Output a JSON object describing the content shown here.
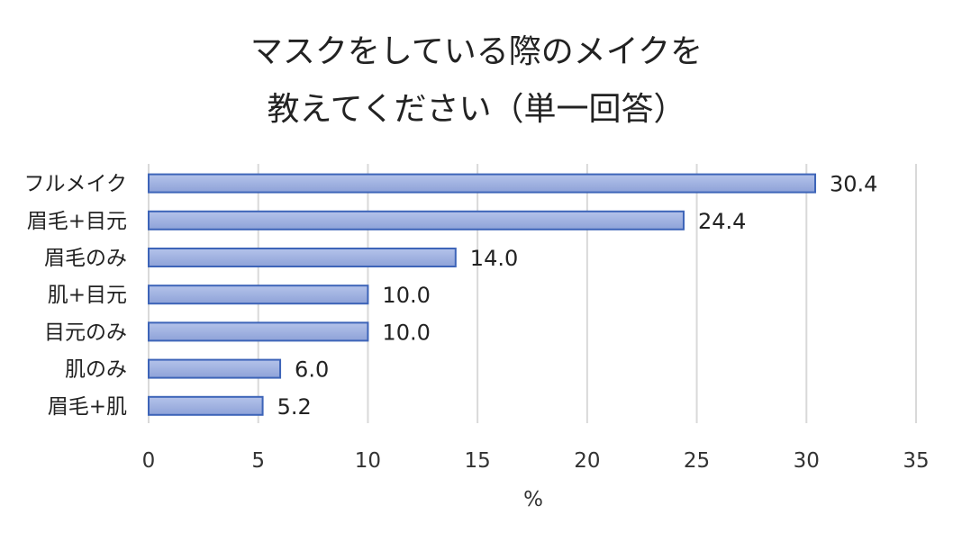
{
  "chart_data": {
    "type": "bar",
    "orientation": "horizontal",
    "title_lines": [
      "マスクをしている際のメイクを",
      "教えてください（単一回答）"
    ],
    "xlabel": "%",
    "xlim": [
      0,
      35
    ],
    "xticks": [
      0,
      5,
      10,
      15,
      20,
      25,
      30,
      35
    ],
    "categories": [
      "フルメイク",
      "眉毛+目元",
      "眉毛のみ",
      "肌+目元",
      "目元のみ",
      "肌のみ",
      "眉毛+肌"
    ],
    "values": [
      30.4,
      24.4,
      14.0,
      10.0,
      10.0,
      6.0,
      5.2
    ],
    "value_labels": [
      "30.4",
      "24.4",
      "14.0",
      "10.0",
      "10.0",
      "6.0",
      "5.2"
    ],
    "grid": "vertical",
    "legend": "none",
    "colors": {
      "bar_fill_top": "#b4c3ea",
      "bar_fill_bottom": "#8ea2d8",
      "bar_stroke": "#3d64b8",
      "grid": "#d9d9d9"
    }
  }
}
